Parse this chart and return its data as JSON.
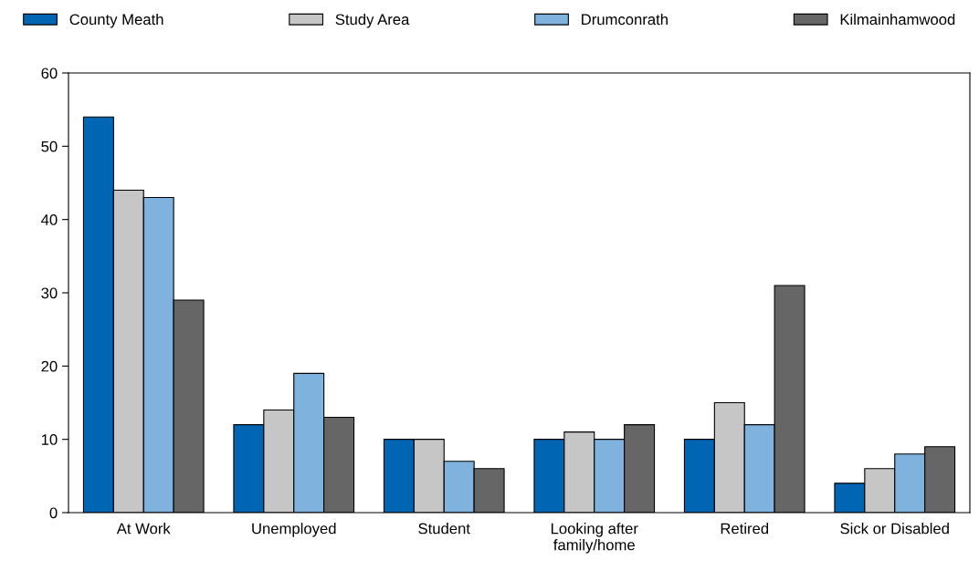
{
  "chart_data": {
    "type": "bar",
    "categories": [
      "At Work",
      "Unemployed",
      "Student",
      "Looking after\nfamily/home",
      "Retired",
      "Sick or Disabled"
    ],
    "series": [
      {
        "name": "County Meath",
        "color": "#0066b3",
        "values": [
          54,
          12,
          10,
          10,
          10,
          4
        ]
      },
      {
        "name": "Study Area",
        "color": "#c6c6c6",
        "values": [
          44,
          14,
          10,
          11,
          15,
          6
        ]
      },
      {
        "name": "Drumconrath",
        "color": "#7fb2dc",
        "values": [
          43,
          19,
          7,
          10,
          12,
          8
        ]
      },
      {
        "name": "Kilmainhamwood",
        "color": "#666666",
        "values": [
          29,
          13,
          6,
          12,
          31,
          9
        ]
      }
    ],
    "ylim": [
      0,
      60
    ],
    "yticks": [
      0,
      10,
      20,
      30,
      40,
      50,
      60
    ],
    "grid": false,
    "legend": "top"
  }
}
